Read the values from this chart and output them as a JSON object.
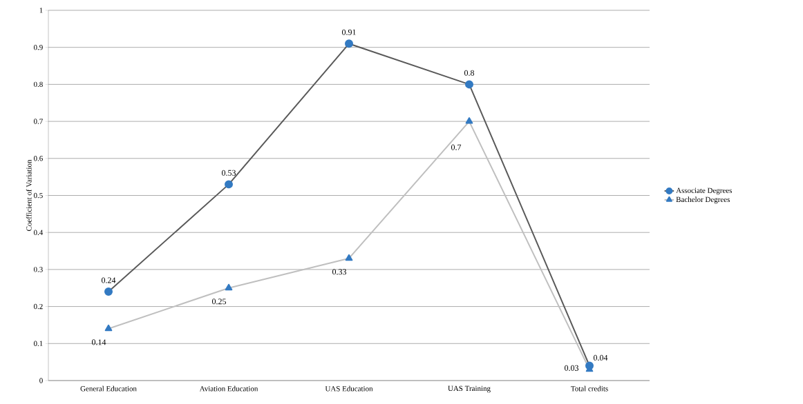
{
  "chart_data": {
    "type": "line",
    "ylabel": "Coefficient of Variation",
    "categories": [
      "General Education",
      "Aviation Education",
      "UAS Education",
      "UAS Training",
      "Total credits"
    ],
    "series": [
      {
        "name": "Associate Degrees",
        "color": "#595959",
        "marker": "circle",
        "values": [
          0.24,
          0.53,
          0.91,
          0.8,
          0.04
        ]
      },
      {
        "name": "Bachelor Degrees",
        "color": "#bfbfbf",
        "marker": "triangle",
        "values": [
          0.14,
          0.25,
          0.33,
          0.7,
          0.03
        ]
      }
    ],
    "ylim": [
      0,
      1
    ],
    "yticks": [
      0,
      0.1,
      0.2,
      0.3,
      0.4,
      0.5,
      0.6,
      0.7,
      0.8,
      0.9,
      1
    ],
    "grid": "y",
    "legend": "right",
    "data_labels": true
  }
}
